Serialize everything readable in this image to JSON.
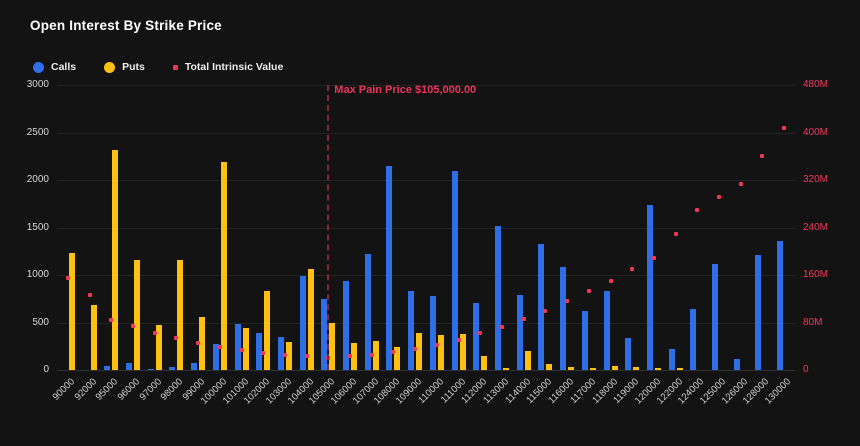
{
  "title": "Open Interest By Strike Price",
  "legend": [
    {
      "label": "Calls",
      "color": "#2e6fe8",
      "shape": "circle"
    },
    {
      "label": "Puts",
      "color": "#fdc013",
      "shape": "circle"
    },
    {
      "label": "Total Intrinsic Value",
      "color": "#f23655",
      "shape": "square"
    }
  ],
  "annotation": {
    "label": "Max Pain Price $105,000.00",
    "text_color": "#e8355f",
    "line_color": "#84273c"
  },
  "chart_data": {
    "type": "bar",
    "title": "Open Interest By Strike Price",
    "categories": [
      "90000",
      "92000",
      "95000",
      "96000",
      "97000",
      "98000",
      "99000",
      "100000",
      "101000",
      "102000",
      "103000",
      "104000",
      "105000",
      "106000",
      "107000",
      "108000",
      "109000",
      "110000",
      "111000",
      "112000",
      "113000",
      "114000",
      "115000",
      "116000",
      "117000",
      "118000",
      "119000",
      "120000",
      "122000",
      "124000",
      "125000",
      "126000",
      "128000",
      "130000"
    ],
    "series": [
      {
        "name": "Calls",
        "type": "bar",
        "axis": "left",
        "color": "#2e6fe8",
        "values": [
          0,
          0,
          40,
          70,
          10,
          35,
          75,
          275,
          485,
          390,
          350,
          985,
          745,
          940,
          1225,
          2150,
          835,
          775,
          2100,
          705,
          1520,
          790,
          1330,
          1080,
          625,
          835,
          340,
          1735,
          220,
          640,
          1120,
          115,
          1215,
          1355
        ]
      },
      {
        "name": "Puts",
        "type": "bar",
        "axis": "left",
        "color": "#fdc013",
        "values": [
          1235,
          685,
          2320,
          1155,
          470,
          1155,
          560,
          2190,
          445,
          830,
          295,
          1060,
          490,
          280,
          310,
          240,
          390,
          365,
          375,
          150,
          25,
          200,
          60,
          28,
          18,
          42,
          35,
          25,
          18,
          0,
          0,
          0,
          0,
          0
        ]
      },
      {
        "name": "Total Intrinsic Value",
        "type": "scatter",
        "axis": "right",
        "color": "#f23655",
        "values_millions": [
          155,
          127,
          85,
          75,
          63,
          54,
          46,
          38,
          33,
          28,
          26,
          24,
          21,
          23,
          26,
          31,
          35,
          42,
          51,
          62,
          73,
          86,
          100,
          116,
          133,
          150,
          171,
          188,
          229,
          270,
          291,
          314,
          361,
          408
        ]
      }
    ],
    "left_axis": {
      "ticks": [
        "3000",
        "2500",
        "2000",
        "1500",
        "1000",
        "500",
        "0"
      ],
      "range": [
        0,
        3000
      ],
      "label_color": "#d6d6d6"
    },
    "right_axis": {
      "ticks": [
        "480M",
        "400M",
        "320M",
        "240M",
        "160M",
        "80M",
        "0"
      ],
      "range_millions": [
        0,
        480
      ],
      "label_color": "#ee3b5f"
    },
    "max_pain": {
      "strike": "105000",
      "index": 12
    },
    "grid": "horizontal",
    "legend_position": "top-left"
  }
}
